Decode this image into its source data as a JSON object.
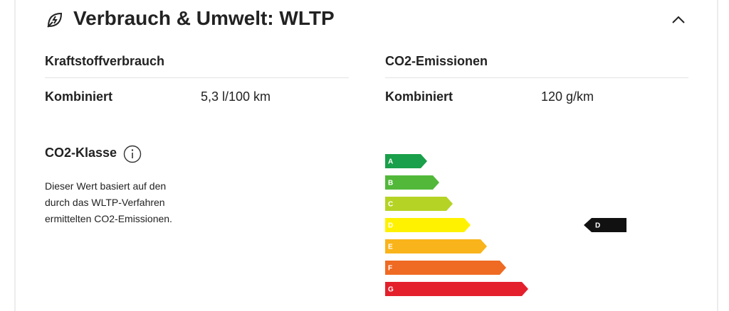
{
  "header": {
    "title": "Verbrauch & Umwelt: WLTP"
  },
  "fuel": {
    "title": "Kraftstoffverbrauch",
    "label": "Kombiniert",
    "value": "5,3 l/100 km"
  },
  "emissions": {
    "title": "CO2-Emissionen",
    "label": "Kombiniert",
    "value": "120 g/km"
  },
  "co2_class": {
    "title": "CO2-Klasse",
    "description": [
      "Dieser Wert basiert auf den",
      "durch das WLTP-Verfahren",
      "ermittelten CO2-Emissionen."
    ],
    "classes": [
      "A",
      "B",
      "C",
      "D",
      "E",
      "F",
      "G"
    ],
    "current": "D"
  }
}
